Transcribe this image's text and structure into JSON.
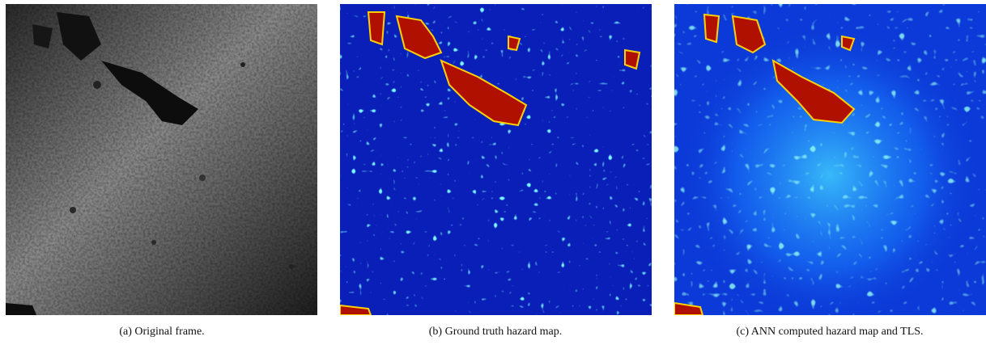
{
  "figure": {
    "panels": [
      {
        "caption": "(a) Original frame."
      },
      {
        "caption": "(b) Ground truth hazard map."
      },
      {
        "caption": "(c) ANN computed hazard map and TLS."
      }
    ]
  }
}
